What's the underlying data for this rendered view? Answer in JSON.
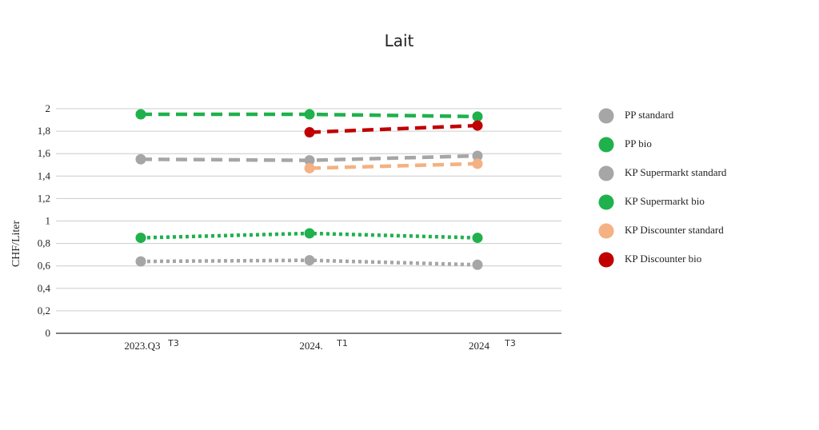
{
  "chart_data": {
    "type": "line",
    "title": "Lait",
    "ylabel": "CHF/Liter",
    "xlabel": "",
    "ylim": [
      0,
      2
    ],
    "yticks": [
      "2",
      "1,8",
      "1,6",
      "1,4",
      "1,2",
      "1",
      "0,8",
      "0,6",
      "0,4",
      "0,2",
      "0"
    ],
    "categories": [
      {
        "main": "2023.Q3",
        "sub": "T3"
      },
      {
        "main": "2024.",
        "sub": "T1"
      },
      {
        "main": "2024",
        "sub": "T3"
      }
    ],
    "grid": true,
    "legend_position": "right",
    "series": [
      {
        "name": "PP standard",
        "color": "#a6a6a6",
        "dash": "dotted",
        "values": [
          0.64,
          0.65,
          0.61
        ]
      },
      {
        "name": "PP bio",
        "color": "#1fb14c",
        "dash": "dotted",
        "values": [
          0.85,
          0.89,
          0.85
        ]
      },
      {
        "name": "KP Supermarkt standard",
        "color": "#a6a6a6",
        "dash": "dashed",
        "values": [
          1.55,
          1.54,
          1.58
        ]
      },
      {
        "name": "KP Supermarkt bio",
        "color": "#1fb14c",
        "dash": "dashed",
        "values": [
          1.95,
          1.95,
          1.93
        ]
      },
      {
        "name": "KP Discounter standard",
        "color": "#f4b183",
        "dash": "dashed",
        "values": [
          null,
          1.47,
          1.51
        ]
      },
      {
        "name": "KP Discounter bio",
        "color": "#c00000",
        "dash": "dashed",
        "values": [
          null,
          1.79,
          1.85
        ]
      }
    ]
  }
}
